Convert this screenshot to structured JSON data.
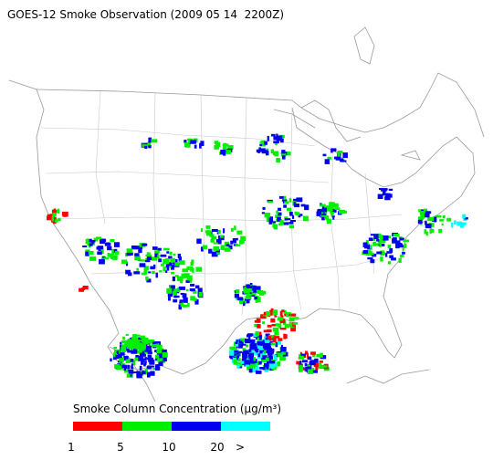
{
  "title": "GOES-12 Smoke Observation (2009 05 14  2200Z)",
  "legend": {
    "title": "Smoke Column Concentration (μg/m³)",
    "colors": [
      "#ff0000",
      "#00ee00",
      "#0000ee",
      "#00ffff"
    ],
    "tick_labels": [
      "1",
      "5",
      "10",
      "20",
      ">"
    ]
  }
}
